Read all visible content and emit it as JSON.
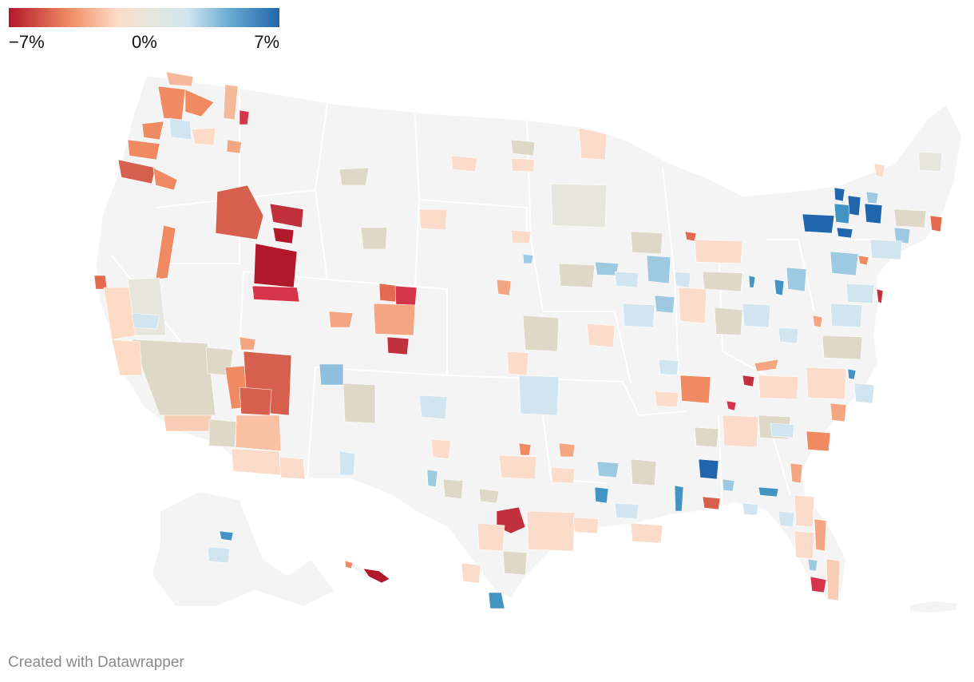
{
  "legend": {
    "min_label": "−7%",
    "mid_label": "0%",
    "max_label": "7%",
    "scale": {
      "min": -7,
      "mid": 0,
      "max": 7,
      "unit": "%"
    },
    "colors": [
      "#b2182b",
      "#ef8a62",
      "#fddbc7",
      "#e6e6dc",
      "#d1e5f0",
      "#67a9cf",
      "#2166ac"
    ]
  },
  "map": {
    "region": "United States (contiguous + Alaska, Hawaii, Puerto Rico)",
    "background_color": "#f4f4f4",
    "border_color": "#ffffff"
  },
  "footer": {
    "credit": "Created with Datawrapper"
  }
}
